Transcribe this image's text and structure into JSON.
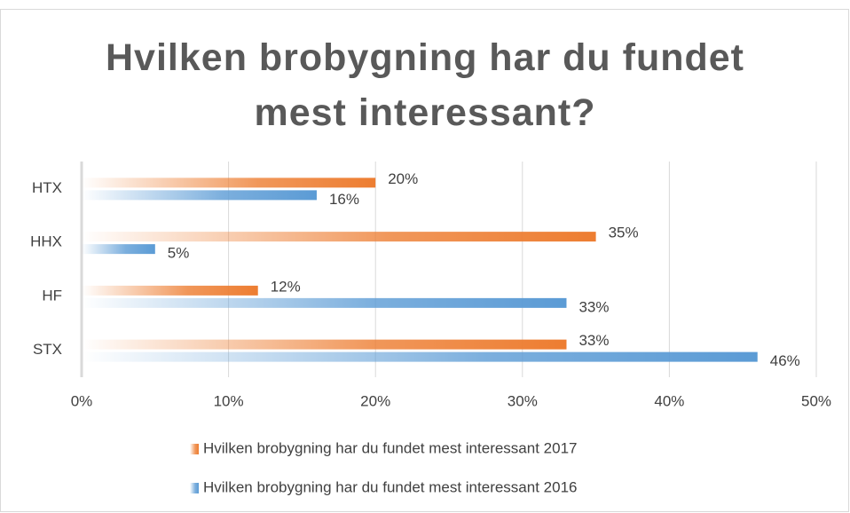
{
  "chart_data": {
    "type": "bar",
    "orientation": "horizontal",
    "title": "Hvilken brobygning har du fundet mest interessant?",
    "categories": [
      "HTX",
      "HHX",
      "HF",
      "STX"
    ],
    "series": [
      {
        "name": "Hvilken brobygning har du fundet mest interessant 2017",
        "color": "#ed7d31",
        "values": [
          20,
          35,
          12,
          33
        ],
        "value_labels": [
          "20%",
          "35%",
          "12%",
          "33%"
        ]
      },
      {
        "name": "Hvilken brobygning har du fundet mest interessant 2016",
        "color": "#5b9bd5",
        "values": [
          16,
          5,
          33,
          46
        ],
        "value_labels": [
          "16%",
          "5%",
          "33%",
          "46%"
        ]
      }
    ],
    "xlim": [
      0,
      50
    ],
    "xticks": [
      {
        "value": 0,
        "label": "0%"
      },
      {
        "value": 10,
        "label": "10%"
      },
      {
        "value": 20,
        "label": "20%"
      },
      {
        "value": 30,
        "label": "30%"
      },
      {
        "value": 40,
        "label": "40%"
      },
      {
        "value": 50,
        "label": "50%"
      }
    ],
    "grid": true,
    "legend": "bottom"
  }
}
